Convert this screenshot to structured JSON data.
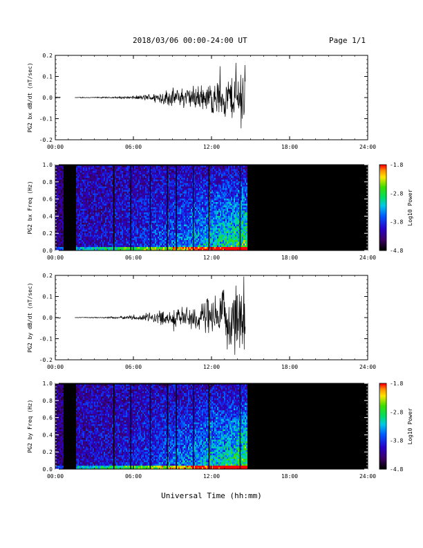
{
  "header": {
    "title": "2018/03/06  00:00-24:00 UT",
    "page": "Page 1/1"
  },
  "x_axis_title": "Universal Time (hh:mm)",
  "chart_data": [
    {
      "type": "line",
      "ylabel": "PG2 bx dB/dt (nT/sec)",
      "xlim": [
        0,
        24
      ],
      "xticks": [
        "00:00",
        "06:00",
        "12:00",
        "18:00",
        "24:00"
      ],
      "ylim": [
        -0.2,
        0.2
      ],
      "yticks": [
        "-0.2",
        "-0.1",
        "0.0",
        "0.1",
        "0.2"
      ],
      "color": "#000000",
      "x": [
        0,
        0.5,
        1.0,
        1.5,
        2.0,
        2.5,
        3.0,
        3.5,
        4.0,
        4.5,
        5.0,
        5.5,
        6.0,
        6.5,
        7.0,
        7.5,
        8.0,
        8.5,
        9.0,
        9.5,
        10.0,
        10.5,
        11.0,
        11.5,
        12.0,
        12.5,
        13.0,
        13.5,
        14.0,
        14.5,
        14.6
      ],
      "envelope": [
        0.003,
        0.003,
        0,
        0,
        0.002,
        0.002,
        0.002,
        0.003,
        0.003,
        0.004,
        0.005,
        0.006,
        0.008,
        0.01,
        0.015,
        0.02,
        0.03,
        0.035,
        0.04,
        0.04,
        0.05,
        0.05,
        0.06,
        0.06,
        0.07,
        0.08,
        0.09,
        0.1,
        0.12,
        0.15,
        0.15
      ],
      "gap": [
        0.5,
        1.5
      ]
    },
    {
      "type": "heatmap",
      "ylabel": "PG2 bx Freq (Hz)",
      "xlim": [
        0,
        24
      ],
      "xticks": [
        "00:00",
        "06:00",
        "12:00",
        "18:00",
        "24:00"
      ],
      "ylim": [
        0,
        1
      ],
      "yticks": [
        "0.0",
        "0.2",
        "0.4",
        "0.6",
        "0.8",
        "1.0"
      ],
      "colorbar": {
        "label": "Log10 Power",
        "ticks": [
          "-1.8",
          "-2.8",
          "-3.8",
          "-4.8"
        ],
        "range": [
          -4.8,
          -1.8
        ]
      },
      "data_end_hour": 14.7,
      "gap": [
        0.6,
        1.5
      ],
      "dark_lines": [
        4.5,
        5.8,
        7.3,
        8.6,
        9.3,
        10.6,
        11.8,
        14.2
      ]
    },
    {
      "type": "line",
      "ylabel": "PG2 by dB/dt (nT/sec)",
      "xlim": [
        0,
        24
      ],
      "xticks": [
        "00:00",
        "06:00",
        "12:00",
        "18:00",
        "24:00"
      ],
      "ylim": [
        -0.2,
        0.2
      ],
      "yticks": [
        "-0.2",
        "-0.1",
        "0.0",
        "0.1",
        "0.2"
      ],
      "color": "#000000",
      "x": [
        0,
        0.5,
        1.0,
        1.5,
        2.0,
        2.5,
        3.0,
        3.5,
        4.0,
        4.5,
        5.0,
        5.5,
        6.0,
        6.5,
        7.0,
        7.5,
        8.0,
        8.5,
        9.0,
        9.5,
        10.0,
        10.5,
        11.0,
        11.5,
        12.0,
        12.5,
        13.0,
        13.5,
        14.0,
        14.5,
        14.6
      ],
      "envelope": [
        0.003,
        0.003,
        0,
        0,
        0.002,
        0.002,
        0.002,
        0.003,
        0.004,
        0.005,
        0.006,
        0.008,
        0.01,
        0.012,
        0.02,
        0.025,
        0.03,
        0.035,
        0.04,
        0.045,
        0.05,
        0.06,
        0.07,
        0.08,
        0.09,
        0.1,
        0.12,
        0.14,
        0.16,
        0.2,
        0.2
      ],
      "gap": [
        0.5,
        1.5
      ]
    },
    {
      "type": "heatmap",
      "ylabel": "PG2 by Freq (Hz)",
      "xlim": [
        0,
        24
      ],
      "xticks": [
        "00:00",
        "06:00",
        "12:00",
        "18:00",
        "24:00"
      ],
      "ylim": [
        0,
        1
      ],
      "yticks": [
        "0.0",
        "0.2",
        "0.4",
        "0.6",
        "0.8",
        "1.0"
      ],
      "colorbar": {
        "label": "Log10 Power",
        "ticks": [
          "-1.8",
          "-2.8",
          "-3.8",
          "-4.8"
        ],
        "range": [
          -4.8,
          -1.8
        ]
      },
      "data_end_hour": 14.7,
      "gap": [
        0.6,
        1.5
      ],
      "dark_lines": [
        4.5,
        5.8,
        7.3,
        8.6,
        9.3,
        10.6,
        11.8,
        14.2
      ]
    }
  ]
}
